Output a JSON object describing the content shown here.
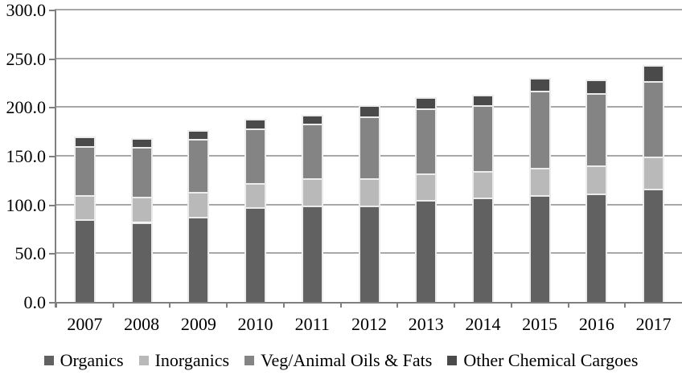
{
  "chart_data": {
    "type": "bar",
    "stacked": true,
    "title": "",
    "xlabel": "",
    "ylabel": "",
    "categories": [
      "2007",
      "2008",
      "2009",
      "2010",
      "2011",
      "2012",
      "2013",
      "2014",
      "2015",
      "2016",
      "2017"
    ],
    "series": [
      {
        "name": "Organics",
        "color": "#616161",
        "values": [
          85,
          82,
          87,
          97,
          99,
          99,
          105,
          107,
          110,
          111,
          116
        ]
      },
      {
        "name": "Inorganics",
        "color": "#b9b9b9",
        "values": [
          25,
          26,
          26,
          25,
          28,
          28,
          27,
          27,
          28,
          29,
          33
        ]
      },
      {
        "name": "Veg/Animal Oils & Fats",
        "color": "#848484",
        "values": [
          50,
          51,
          54,
          56,
          56,
          63,
          67,
          68,
          79,
          74,
          78
        ]
      },
      {
        "name": "Other Chemical Cargoes",
        "color": "#4a4a4a",
        "values": [
          10,
          9,
          9,
          10,
          9,
          12,
          11,
          11,
          13,
          14,
          16
        ]
      }
    ],
    "totals": [
      170,
      168,
      176,
      188,
      192,
      202,
      210,
      213,
      230,
      228,
      243
    ],
    "ylim": [
      0,
      300
    ],
    "ytick_step": 50,
    "ytick_labels": [
      "0.0",
      "50.0",
      "100.0",
      "150.0",
      "200.0",
      "250.0",
      "300.0"
    ],
    "grid": true,
    "gridline_color": "#a8a8a8",
    "axis_color": "#7f7f7f",
    "segment_outline_color": "#ececec",
    "legend_position": "bottom"
  }
}
